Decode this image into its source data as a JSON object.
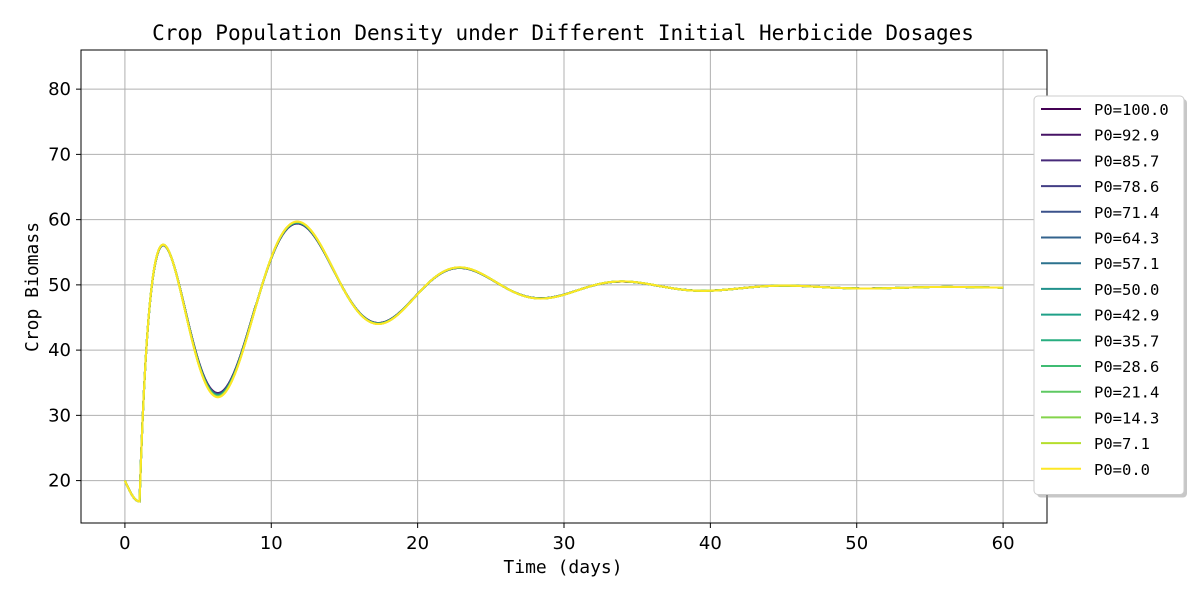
{
  "chart_data": {
    "type": "line",
    "title": "Crop Population Density under Different Initial Herbicide Dosages",
    "xlabel": "Time (days)",
    "ylabel": "Crop Biomass",
    "xlim": [
      -3,
      63
    ],
    "ylim": [
      13.5,
      86
    ],
    "xticks": [
      0,
      10,
      20,
      30,
      40,
      50,
      60
    ],
    "yticks": [
      20,
      30,
      40,
      50,
      60,
      70,
      80
    ],
    "grid": true,
    "legend_position": "center-right, outside plot",
    "model": {
      "note_hidden": true
    },
    "series": [
      {
        "name": "P0=100.0",
        "color": "#440154"
      },
      {
        "name": "P0=92.9",
        "color": "#471365"
      },
      {
        "name": "P0=85.7",
        "color": "#472a7a"
      },
      {
        "name": "P0=78.6",
        "color": "#433e85"
      },
      {
        "name": "P0=71.4",
        "color": "#3b528b"
      },
      {
        "name": "P0=64.3",
        "color": "#33638d"
      },
      {
        "name": "P0=57.1",
        "color": "#2c728e"
      },
      {
        "name": "P0=50.0",
        "color": "#21918c"
      },
      {
        "name": "P0=42.9",
        "color": "#1fa088"
      },
      {
        "name": "P0=35.7",
        "color": "#28ae80"
      },
      {
        "name": "P0=28.6",
        "color": "#3fbc73"
      },
      {
        "name": "P0=21.4",
        "color": "#5ec962"
      },
      {
        "name": "P0=14.3",
        "color": "#84d44b"
      },
      {
        "name": "P0=7.1",
        "color": "#b5de2b"
      },
      {
        "name": "P0=0.0",
        "color": "#fde725"
      }
    ]
  }
}
